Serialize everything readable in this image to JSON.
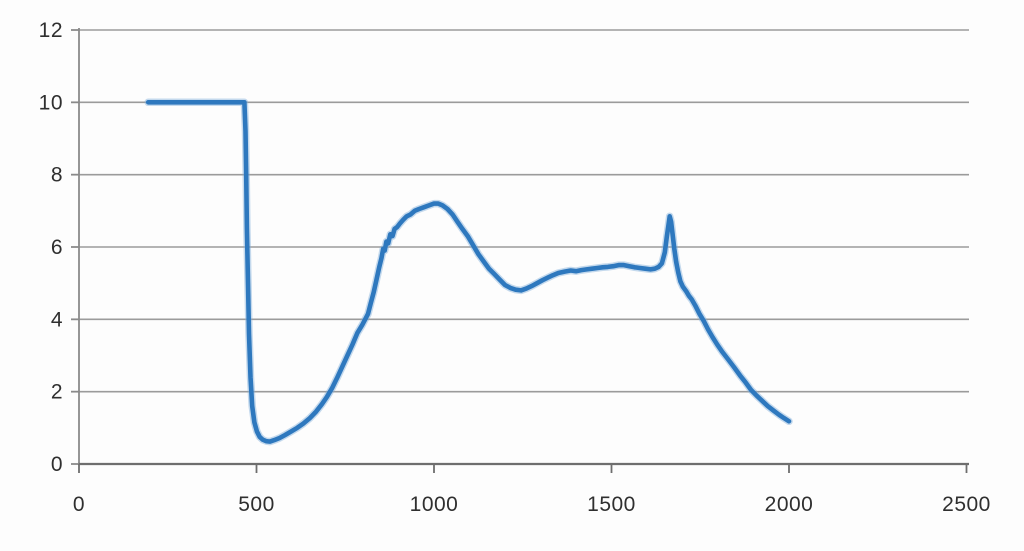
{
  "chart_data": {
    "type": "line",
    "title": "",
    "xlabel": "",
    "ylabel": "",
    "xlim": [
      0,
      2500
    ],
    "ylim": [
      0,
      12
    ],
    "x_ticks": [
      0,
      500,
      1000,
      1500,
      2000,
      2500
    ],
    "y_ticks": [
      0,
      2,
      4,
      6,
      8,
      10,
      12
    ],
    "grid": "horizontal",
    "legend_position": "none",
    "colors": {
      "line": "#2e78be",
      "line_halo": "#7fadda",
      "gridline": "#9b9b9b",
      "y_axis": "#8a8a8a",
      "x_axis": "#6e6e6e",
      "tick_label": "#2f2f2f"
    },
    "series": [
      {
        "name": "series-1",
        "points": [
          [
            195,
            10
          ],
          [
            240,
            10
          ],
          [
            290,
            10
          ],
          [
            340,
            10
          ],
          [
            390,
            10
          ],
          [
            430,
            10
          ],
          [
            455,
            10
          ],
          [
            466,
            10
          ],
          [
            469,
            9.2
          ],
          [
            471,
            8.0
          ],
          [
            473,
            6.5
          ],
          [
            476,
            5.0
          ],
          [
            479,
            3.6
          ],
          [
            483,
            2.4
          ],
          [
            488,
            1.6
          ],
          [
            494,
            1.15
          ],
          [
            501,
            0.9
          ],
          [
            509,
            0.75
          ],
          [
            518,
            0.67
          ],
          [
            528,
            0.63
          ],
          [
            538,
            0.62
          ],
          [
            550,
            0.66
          ],
          [
            565,
            0.72
          ],
          [
            580,
            0.8
          ],
          [
            598,
            0.9
          ],
          [
            615,
            1.0
          ],
          [
            632,
            1.12
          ],
          [
            650,
            1.27
          ],
          [
            668,
            1.45
          ],
          [
            684,
            1.65
          ],
          [
            698,
            1.85
          ],
          [
            713,
            2.1
          ],
          [
            728,
            2.4
          ],
          [
            742,
            2.7
          ],
          [
            756,
            3.0
          ],
          [
            770,
            3.3
          ],
          [
            784,
            3.62
          ],
          [
            798,
            3.85
          ],
          [
            814,
            4.15
          ],
          [
            822,
            4.45
          ],
          [
            830,
            4.75
          ],
          [
            838,
            5.1
          ],
          [
            846,
            5.45
          ],
          [
            852,
            5.7
          ],
          [
            857,
            5.95
          ],
          [
            861,
            5.9
          ],
          [
            866,
            6.15
          ],
          [
            871,
            6.1
          ],
          [
            877,
            6.35
          ],
          [
            883,
            6.3
          ],
          [
            889,
            6.5
          ],
          [
            896,
            6.55
          ],
          [
            904,
            6.65
          ],
          [
            913,
            6.75
          ],
          [
            923,
            6.85
          ],
          [
            934,
            6.9
          ],
          [
            946,
            7.0
          ],
          [
            958,
            7.05
          ],
          [
            972,
            7.1
          ],
          [
            986,
            7.15
          ],
          [
            1000,
            7.2
          ],
          [
            1012,
            7.2
          ],
          [
            1024,
            7.15
          ],
          [
            1038,
            7.05
          ],
          [
            1052,
            6.9
          ],
          [
            1066,
            6.7
          ],
          [
            1080,
            6.5
          ],
          [
            1095,
            6.3
          ],
          [
            1110,
            6.05
          ],
          [
            1125,
            5.8
          ],
          [
            1140,
            5.6
          ],
          [
            1155,
            5.4
          ],
          [
            1170,
            5.25
          ],
          [
            1185,
            5.1
          ],
          [
            1200,
            4.95
          ],
          [
            1215,
            4.87
          ],
          [
            1230,
            4.82
          ],
          [
            1245,
            4.8
          ],
          [
            1260,
            4.85
          ],
          [
            1275,
            4.92
          ],
          [
            1290,
            5.0
          ],
          [
            1305,
            5.08
          ],
          [
            1320,
            5.15
          ],
          [
            1335,
            5.22
          ],
          [
            1350,
            5.28
          ],
          [
            1368,
            5.32
          ],
          [
            1385,
            5.35
          ],
          [
            1400,
            5.33
          ],
          [
            1415,
            5.36
          ],
          [
            1430,
            5.38
          ],
          [
            1445,
            5.4
          ],
          [
            1460,
            5.42
          ],
          [
            1475,
            5.44
          ],
          [
            1490,
            5.45
          ],
          [
            1505,
            5.47
          ],
          [
            1520,
            5.5
          ],
          [
            1535,
            5.5
          ],
          [
            1550,
            5.47
          ],
          [
            1565,
            5.44
          ],
          [
            1580,
            5.42
          ],
          [
            1595,
            5.4
          ],
          [
            1610,
            5.38
          ],
          [
            1622,
            5.4
          ],
          [
            1633,
            5.45
          ],
          [
            1642,
            5.55
          ],
          [
            1650,
            5.85
          ],
          [
            1656,
            6.3
          ],
          [
            1661,
            6.65
          ],
          [
            1664,
            6.85
          ],
          [
            1668,
            6.7
          ],
          [
            1672,
            6.35
          ],
          [
            1677,
            5.95
          ],
          [
            1682,
            5.6
          ],
          [
            1688,
            5.3
          ],
          [
            1694,
            5.05
          ],
          [
            1701,
            4.9
          ],
          [
            1710,
            4.78
          ],
          [
            1718,
            4.65
          ],
          [
            1726,
            4.55
          ],
          [
            1736,
            4.38
          ],
          [
            1748,
            4.15
          ],
          [
            1760,
            3.95
          ],
          [
            1772,
            3.72
          ],
          [
            1785,
            3.5
          ],
          [
            1798,
            3.3
          ],
          [
            1812,
            3.1
          ],
          [
            1828,
            2.9
          ],
          [
            1845,
            2.68
          ],
          [
            1862,
            2.45
          ],
          [
            1878,
            2.25
          ],
          [
            1893,
            2.05
          ],
          [
            1908,
            1.9
          ],
          [
            1924,
            1.75
          ],
          [
            1940,
            1.6
          ],
          [
            1956,
            1.48
          ],
          [
            1972,
            1.36
          ],
          [
            1986,
            1.27
          ],
          [
            2000,
            1.18
          ]
        ]
      }
    ]
  }
}
